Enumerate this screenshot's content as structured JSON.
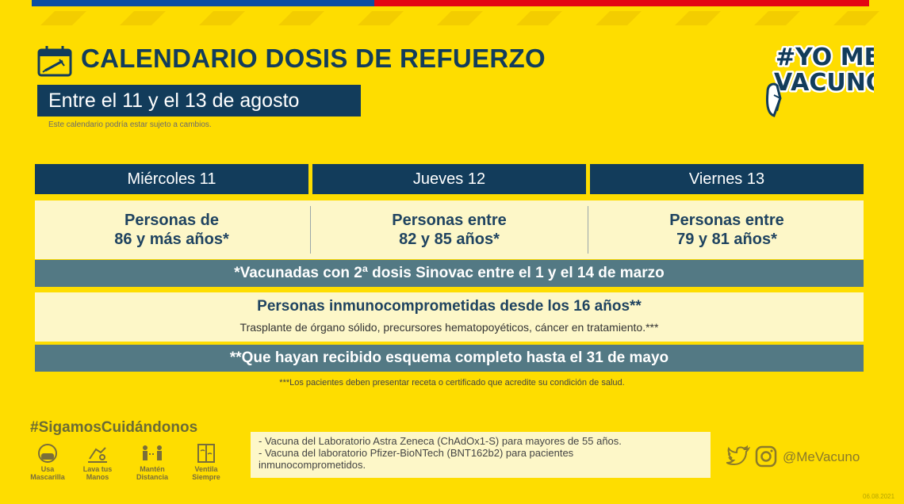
{
  "colors": {
    "background": "#fedd00",
    "navy": "#123c5b",
    "teal_bar": "#537984",
    "cream": "#fdf7c8",
    "flag_blue": "#0b4ea2",
    "flag_red": "#e30613"
  },
  "header": {
    "title": "CALENDARIO DOSIS DE REFUERZO",
    "date_range": "Entre el 11 y el 13 de agosto",
    "disclaimer": "Este calendario podría estar sujeto a cambios.",
    "icon": "calendar-syringe-icon"
  },
  "logo": {
    "line1": "#YO ME",
    "line2": "VACUNO",
    "icon": "thumbs-up-icon"
  },
  "schedule": {
    "days": [
      {
        "label": "Miércoles 11",
        "group": "Personas de\n86 y más años*"
      },
      {
        "label": "Jueves 12",
        "group": "Personas entre\n82 y 85 años*"
      },
      {
        "label": "Viernes 13",
        "group": "Personas entre\n79 y 81 años*"
      }
    ],
    "note1": "*Vacunadas con 2ª dosis Sinovac entre el 1 y el 14 de marzo",
    "immuno_title": "Personas inmunocomprometidas desde los 16 años**",
    "immuno_detail": "Trasplante de órgano sólido, precursores hematopoyéticos, cáncer en tratamiento.***",
    "note2": "**Que hayan recibido esquema completo hasta el 31 de mayo",
    "footnote": "***Los pacientes deben presentar receta o certificado que acredite su condición de salud."
  },
  "footer": {
    "hashtag": "#SigamosCuidándonos",
    "care_items": [
      {
        "label": "Usa\nMascarilla",
        "icon": "mask-icon"
      },
      {
        "label": "Lava tus\nManos",
        "icon": "hand-wash-icon"
      },
      {
        "label": "Mantén\nDistancia",
        "icon": "distance-icon"
      },
      {
        "label": "Ventila\nSiempre",
        "icon": "window-icon"
      }
    ],
    "vaccines": [
      "- Vacuna del Laboratorio Astra Zeneca (ChAdOx1-S) para mayores de 55 años.",
      "- Vacuna del laboratorio Pfizer-BioNTech (BNT162b2) para pacientes\n  inmunocomprometidos."
    ],
    "social_icons": [
      "twitter-icon",
      "instagram-icon"
    ],
    "social_handle": "@MeVacuno",
    "date_stamp": "06.08.2021"
  }
}
